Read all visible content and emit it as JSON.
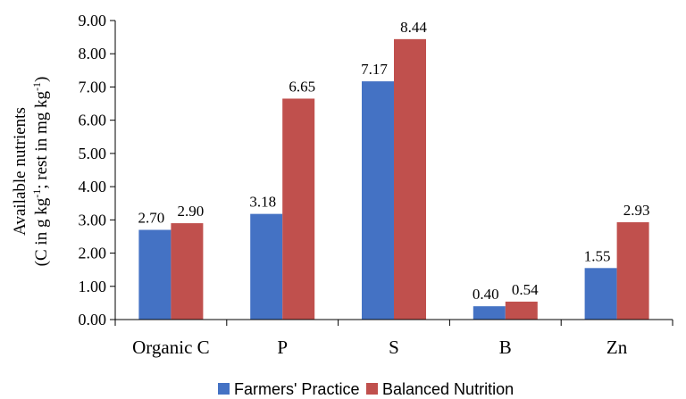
{
  "chart_data": {
    "type": "bar",
    "categories": [
      "Organic C",
      "P",
      "S",
      "B",
      "Zn"
    ],
    "series": [
      {
        "name": "Farmers' Practice",
        "values": [
          2.7,
          3.18,
          7.17,
          0.4,
          1.55
        ],
        "labels": [
          "2.70",
          "3.18",
          "7.17",
          "0.40",
          "1.55"
        ],
        "color": "#4472C4"
      },
      {
        "name": "Balanced Nutrition",
        "values": [
          2.9,
          6.65,
          8.44,
          0.54,
          2.93
        ],
        "labels": [
          "2.90",
          "6.65",
          "8.44",
          "0.54",
          "2.93"
        ],
        "color": "#C0504D"
      }
    ],
    "ylabel_line1": "Available nutrients",
    "ylabel_line2": {
      "part1": "(C in g kg",
      "sup1": "-1",
      "part2": "; rest in mg kg",
      "sup2": "-1",
      "part3": ")"
    },
    "ylim": [
      0,
      9
    ],
    "yticks": [
      "0.00",
      "1.00",
      "2.00",
      "3.00",
      "4.00",
      "5.00",
      "6.00",
      "7.00",
      "8.00",
      "9.00"
    ],
    "grid": false,
    "legend_position": "bottom"
  }
}
